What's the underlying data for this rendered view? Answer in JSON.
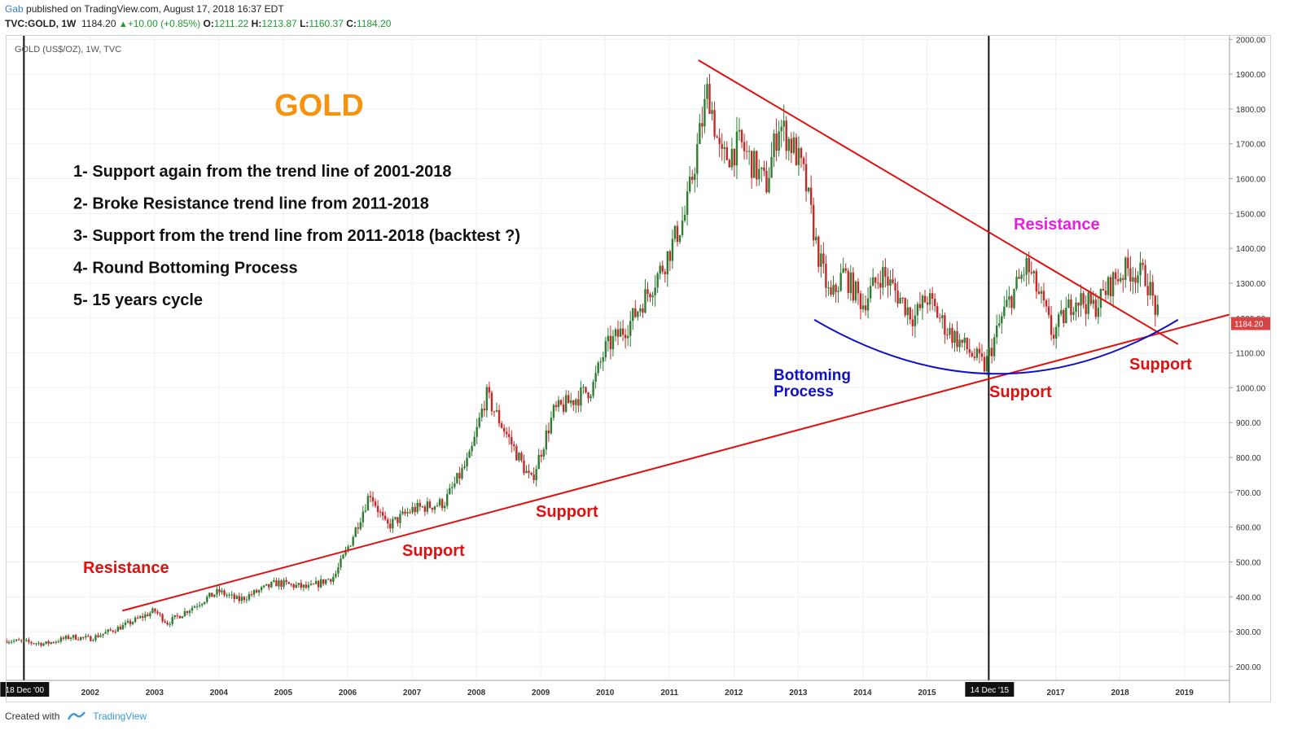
{
  "header": {
    "author": "Gab",
    "published_text": " published on TradingView.com, August 17, 2018 16:37 EDT"
  },
  "ohlc": {
    "symbol": "TVC:GOLD, 1W",
    "last": "1184.20",
    "change": "+10.00 (+0.85%)",
    "o_label": "O:",
    "o": "1211.22",
    "h_label": "H:",
    "h": "1213.87",
    "l_label": "L:",
    "l": "1160.37",
    "c_label": "C:",
    "c": "1184.20"
  },
  "footer": {
    "created_with": "Created with",
    "brand": "TradingView"
  },
  "colors": {
    "up_candle": "#2e7d32",
    "down_candle": "#c62828",
    "trend_red": "#e01010",
    "bowl_blue": "#1010c8",
    "text_orange": "#f5920e",
    "text_magenta": "#e81ee0",
    "price_tag": "#d64545"
  },
  "chart_data": {
    "type": "candlestick",
    "title": "GOLD (US$/OZ), 1W, TVC",
    "heading": "GOLD",
    "x_unit": "year",
    "xlim": [
      2000.7,
      2019.7
    ],
    "ylim": [
      160,
      2010
    ],
    "x_ticks": [
      2002,
      2003,
      2004,
      2005,
      2006,
      2007,
      2008,
      2009,
      2010,
      2011,
      2012,
      2013,
      2014,
      2015,
      2017,
      2018,
      2019
    ],
    "y_ticks": [
      200,
      300,
      400,
      500,
      600,
      700,
      800,
      900,
      1000,
      1100,
      1200,
      1300,
      1400,
      1500,
      1600,
      1700,
      1800,
      1900,
      2000
    ],
    "y_tick_labels": [
      "200.00",
      "300.00",
      "400.00",
      "500.00",
      "600.00",
      "700.00",
      "800.00",
      "900.00",
      "1000.00",
      "1100.00",
      "1200.00",
      "1300.00",
      "1400.00",
      "1500.00",
      "1600.00",
      "1700.00",
      "1800.00",
      "1900.00",
      "2000.00"
    ],
    "last_price": 1184.2,
    "last_price_label": "1184.20",
    "price_path": [
      [
        2000.7,
        275
      ],
      [
        2001.3,
        265
      ],
      [
        2001.7,
        285
      ],
      [
        2002.0,
        280
      ],
      [
        2002.5,
        315
      ],
      [
        2003.0,
        360
      ],
      [
        2003.2,
        325
      ],
      [
        2003.8,
        395
      ],
      [
        2004.0,
        415
      ],
      [
        2004.3,
        390
      ],
      [
        2004.9,
        440
      ],
      [
        2005.4,
        425
      ],
      [
        2005.8,
        460
      ],
      [
        2006.05,
        560
      ],
      [
        2006.35,
        700
      ],
      [
        2006.6,
        600
      ],
      [
        2007.0,
        650
      ],
      [
        2007.5,
        670
      ],
      [
        2007.9,
        800
      ],
      [
        2008.15,
        980
      ],
      [
        2008.6,
        820
      ],
      [
        2008.85,
        730
      ],
      [
        2009.2,
        930
      ],
      [
        2009.8,
        1000
      ],
      [
        2010.0,
        1110
      ],
      [
        2010.4,
        1190
      ],
      [
        2010.9,
        1350
      ],
      [
        2011.25,
        1500
      ],
      [
        2011.6,
        1860
      ],
      [
        2011.8,
        1650
      ],
      [
        2012.1,
        1700
      ],
      [
        2012.5,
        1580
      ],
      [
        2012.7,
        1760
      ],
      [
        2012.95,
        1680
      ],
      [
        2013.1,
        1600
      ],
      [
        2013.3,
        1390
      ],
      [
        2013.5,
        1250
      ],
      [
        2013.7,
        1330
      ],
      [
        2014.0,
        1240
      ],
      [
        2014.3,
        1330
      ],
      [
        2014.8,
        1200
      ],
      [
        2015.0,
        1260
      ],
      [
        2015.3,
        1170
      ],
      [
        2015.9,
        1060
      ],
      [
        2016.2,
        1220
      ],
      [
        2016.55,
        1350
      ],
      [
        2016.8,
        1240
      ],
      [
        2016.95,
        1150
      ],
      [
        2017.3,
        1260
      ],
      [
        2017.6,
        1230
      ],
      [
        2017.9,
        1310
      ],
      [
        2018.1,
        1340
      ],
      [
        2018.4,
        1320
      ],
      [
        2018.62,
        1184
      ]
    ],
    "x_date_labels": [
      {
        "x": 2000.97,
        "label": "18 Dec '00"
      },
      {
        "x": 2015.96,
        "label": "14 Dec '15"
      }
    ],
    "vertical_lines": [
      2000.97,
      2015.96
    ],
    "trend_lines": [
      {
        "name": "support-2001-2018",
        "from": [
          2002.5,
          360
        ],
        "to": [
          2019.7,
          1210
        ]
      },
      {
        "name": "resistance-2011-2018",
        "from": [
          2011.45,
          1940
        ],
        "to": [
          2018.9,
          1125
        ]
      }
    ],
    "bowl": {
      "name": "bottoming-process",
      "from": [
        2013.25,
        1195
      ],
      "min": [
        2016.1,
        1040
      ],
      "to": [
        2018.9,
        1195
      ]
    },
    "annotations": {
      "notes": [
        "1- Support again from the trend line of 2001-2018",
        "2- Broke Resistance trend line from 2011-2018",
        "3- Support from the trend line from 2011-2018 (backtest ?)",
        "4- Round Bottoming Process",
        "5- 15 years cycle"
      ],
      "resistance_left": "Resistance",
      "support_1": "Support",
      "support_2": "Support",
      "bottoming_1": "Bottoming",
      "bottoming_2": "Process",
      "support_3": "Support",
      "resistance_right": "Resistance",
      "support_4": "Support"
    }
  }
}
